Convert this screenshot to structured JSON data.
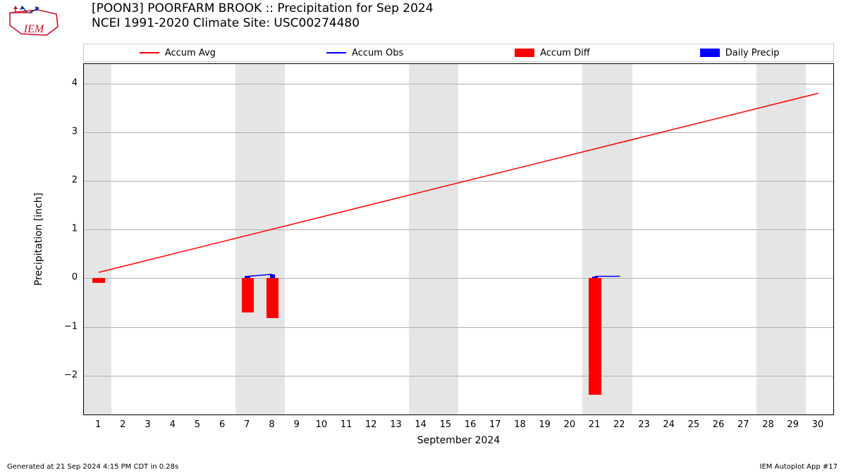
{
  "title_line1": "[POON3] POORFARM  BROOK :: Precipitation for Sep 2024",
  "title_line2": "NCEI 1991-2020 Climate Site: USC00274480",
  "xlabel": "September 2024",
  "ylabel": "Precipitation [inch]",
  "footer_left": "Generated at 21 Sep 2024 4:15 PM CDT in 0.28s",
  "footer_right": "IEM Autoplot App #17",
  "chart": {
    "type": "line+bar",
    "x_domain": [
      0.4,
      30.6
    ],
    "y_domain": [
      -2.8,
      4.4
    ],
    "xticks": [
      1,
      2,
      3,
      4,
      5,
      6,
      7,
      8,
      9,
      10,
      11,
      12,
      13,
      14,
      15,
      16,
      17,
      18,
      19,
      20,
      21,
      22,
      23,
      24,
      25,
      26,
      27,
      28,
      29,
      30
    ],
    "yticks": [
      -2,
      -1,
      0,
      1,
      2,
      3,
      4
    ],
    "xtick_labels": [
      "1",
      "2",
      "3",
      "4",
      "5",
      "6",
      "7",
      "8",
      "9",
      "10",
      "11",
      "12",
      "13",
      "14",
      "15",
      "16",
      "17",
      "18",
      "19",
      "20",
      "21",
      "22",
      "23",
      "24",
      "25",
      "26",
      "27",
      "28",
      "29",
      "30"
    ],
    "ytick_labels": [
      "−2",
      "−1",
      "0",
      "1",
      "2",
      "3",
      "4"
    ],
    "grid_color": "#b0b0b0",
    "background_color": "#ffffff",
    "weekend_band_color": "#e5e5e5",
    "weekend_bands": [
      [
        0.4,
        1.5
      ],
      [
        6.5,
        8.5
      ],
      [
        13.5,
        15.5
      ],
      [
        20.5,
        22.5
      ],
      [
        27.5,
        29.5
      ]
    ],
    "accum_avg": {
      "color": "#ff0000",
      "linewidth": 1.5,
      "x": [
        1,
        30
      ],
      "y": [
        0.12,
        3.8
      ]
    },
    "accum_obs": {
      "color": "#0000ff",
      "linewidth": 1.5,
      "segments": [
        {
          "x": [
            7,
            8
          ],
          "y": [
            0.04,
            0.08
          ]
        },
        {
          "x": [
            21,
            22
          ],
          "y": [
            0.04,
            0.04
          ]
        }
      ]
    },
    "accum_diff_bars": {
      "color": "#ff0000",
      "width": 0.5,
      "data": [
        {
          "x": 1,
          "y": -0.09
        },
        {
          "x": 7,
          "y": -0.7
        },
        {
          "x": 8,
          "y": -0.82
        },
        {
          "x": 21,
          "y": -2.4
        }
      ]
    },
    "daily_precip_bars": {
      "color": "#0000ff",
      "width": 0.22,
      "data": [
        {
          "x": 7,
          "y": 0.05
        },
        {
          "x": 8,
          "y": 0.08
        },
        {
          "x": 21,
          "y": 0.04
        }
      ]
    }
  },
  "legend": {
    "items": [
      {
        "label": "Accum Avg",
        "type": "line",
        "color": "#ff0000"
      },
      {
        "label": "Accum Obs",
        "type": "line",
        "color": "#0000ff"
      },
      {
        "label": "Accum Diff",
        "type": "patch",
        "color": "#ff0000"
      },
      {
        "label": "Daily Precip",
        "type": "patch",
        "color": "#0000ff"
      }
    ]
  },
  "logo": {
    "outline_color": "#ce1126",
    "text": "IEM",
    "arrow_color": "#0033a0"
  }
}
